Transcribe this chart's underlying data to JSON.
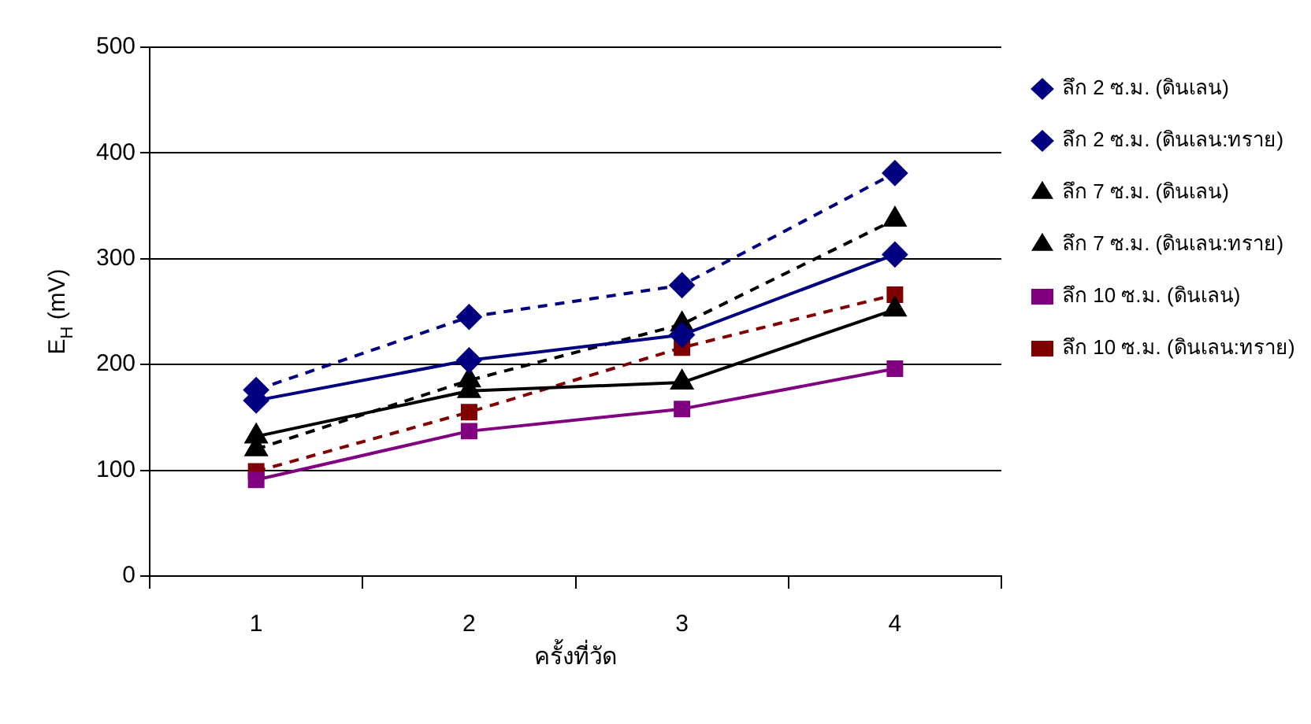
{
  "chart_data": {
    "type": "line",
    "xlabel": "ครั้งที่วัด",
    "ylabel": "E$_{H}$ (mV)",
    "categories": [
      "1",
      "2",
      "3",
      "4"
    ],
    "ylim": [
      0,
      500
    ],
    "yticks": [
      0,
      100,
      200,
      300,
      400,
      500
    ],
    "grid": "y",
    "legend": "right",
    "series": [
      {
        "name": "ลึก 2 ซ.ม. (ดินเลน)",
        "color": "#000080",
        "marker": "diamond",
        "line_style": "solid",
        "values": [
          166,
          204,
          228,
          304
        ]
      },
      {
        "name": "ลึก 2 ซ.ม. (ดินเลน:ทราย)",
        "color": "#000080",
        "marker": "diamond",
        "line_style": "dashed",
        "values": [
          176,
          245,
          275,
          381
        ]
      },
      {
        "name": "ลึก 7 ซ.ม. (ดินเลน)",
        "color": "#000000",
        "marker": "triangle",
        "line_style": "solid",
        "values": [
          132,
          175,
          183,
          252
        ]
      },
      {
        "name": "ลึก 7 ซ.ม. (ดินเลน:ทราย)",
        "color": "#000000",
        "marker": "triangle",
        "line_style": "dashed",
        "values": [
          120,
          185,
          238,
          337
        ]
      },
      {
        "name": "ลึก 10 ซ.ม. (ดินเลน)",
        "color": "#800080",
        "marker": "square",
        "line_style": "solid",
        "values": [
          91,
          137,
          158,
          196
        ]
      },
      {
        "name": "ลึก 10 ซ.ม. (ดินเลน:ทราย)",
        "color": "#800000",
        "marker": "square",
        "line_style": "dashed",
        "values": [
          99,
          155,
          216,
          266
        ]
      }
    ]
  }
}
